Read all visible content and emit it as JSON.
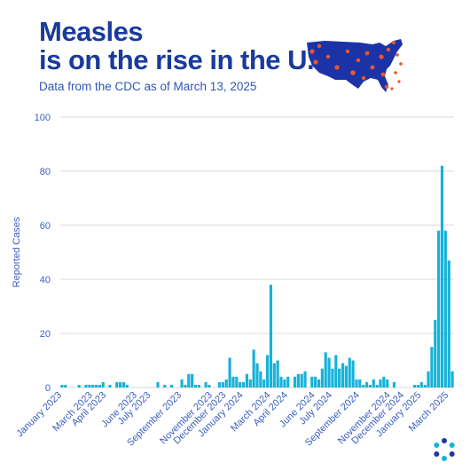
{
  "header": {
    "title_line1": "Measles",
    "title_line2": "is on the rise in the U.S.",
    "subtitle": "Data from the CDC as of March 13, 2025"
  },
  "icons": {
    "map": "us-map-measles-icon",
    "logo": "dotted-ring-logo-icon"
  },
  "colors": {
    "title": "#1a3a9c",
    "text": "#3b5fc0",
    "bar": "#16b2d8",
    "grid": "#d9d9d9",
    "map": "#1c33a8",
    "virus": "#e8572a"
  },
  "chart_data": {
    "type": "bar",
    "ylabel": "Reported Cases",
    "ylim": [
      0,
      100
    ],
    "yticks": [
      0,
      20,
      40,
      60,
      80,
      100
    ],
    "grid": true,
    "xtick_labels": [
      {
        "index": 0,
        "label": "January 2023"
      },
      {
        "index": 9,
        "label": "March 2023"
      },
      {
        "index": 13,
        "label": "April 2023"
      },
      {
        "index": 22,
        "label": "June 2023"
      },
      {
        "index": 26,
        "label": "July 2023"
      },
      {
        "index": 35,
        "label": "September 2023"
      },
      {
        "index": 44,
        "label": "November 2023"
      },
      {
        "index": 48,
        "label": "December 2023"
      },
      {
        "index": 53,
        "label": "January 2024"
      },
      {
        "index": 61,
        "label": "March 2024"
      },
      {
        "index": 66,
        "label": "April 2024"
      },
      {
        "index": 74,
        "label": "June 2024"
      },
      {
        "index": 79,
        "label": "July 2024"
      },
      {
        "index": 87,
        "label": "September 2024"
      },
      {
        "index": 96,
        "label": "November 2024"
      },
      {
        "index": 100,
        "label": "December 2024"
      },
      {
        "index": 105,
        "label": "January 2025"
      },
      {
        "index": 113,
        "label": "March 2025"
      }
    ],
    "values": [
      1,
      1,
      0,
      0,
      0,
      1,
      0,
      1,
      1,
      1,
      1,
      1,
      2,
      0,
      1,
      0,
      2,
      2,
      2,
      1,
      0,
      0,
      0,
      0,
      0,
      0,
      0,
      0,
      2,
      0,
      1,
      0,
      1,
      0,
      0,
      3,
      1,
      5,
      5,
      1,
      1,
      0,
      2,
      1,
      0,
      0,
      2,
      2,
      3,
      11,
      4,
      4,
      2,
      2,
      5,
      3,
      14,
      9,
      6,
      3,
      12,
      38,
      9,
      10,
      4,
      3,
      4,
      0,
      4,
      5,
      5,
      6,
      0,
      4,
      4,
      3,
      7,
      13,
      11,
      7,
      12,
      7,
      9,
      8,
      11,
      10,
      3,
      3,
      1,
      2,
      1,
      3,
      1,
      3,
      4,
      3,
      0,
      2,
      0,
      0,
      0,
      0,
      0,
      1,
      1,
      2,
      1,
      6,
      15,
      25,
      58,
      82,
      58,
      47,
      6
    ]
  }
}
